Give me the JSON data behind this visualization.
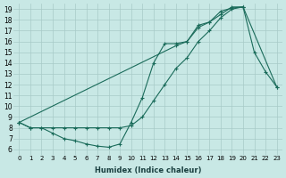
{
  "bg_color": "#c8e8e5",
  "grid_color": "#a8cac8",
  "line_color": "#1a6b5a",
  "xlim": [
    -0.5,
    23.5
  ],
  "ylim": [
    5.5,
    19.5
  ],
  "xticks": [
    0,
    1,
    2,
    3,
    4,
    5,
    6,
    7,
    8,
    9,
    10,
    11,
    12,
    13,
    14,
    15,
    16,
    17,
    18,
    19,
    20,
    21,
    22,
    23
  ],
  "yticks": [
    6,
    7,
    8,
    9,
    10,
    11,
    12,
    13,
    14,
    15,
    16,
    17,
    18,
    19
  ],
  "xlabel": "Humidex (Indice chaleur)",
  "line1_x": [
    0,
    1,
    2,
    3,
    4,
    5,
    6,
    7,
    8,
    9,
    10,
    11,
    12,
    13,
    14,
    15,
    16,
    17,
    18,
    19,
    20,
    21,
    22,
    23
  ],
  "line1_y": [
    8.5,
    8.0,
    8.0,
    7.5,
    7.0,
    6.8,
    6.5,
    6.3,
    6.2,
    6.5,
    8.5,
    10.8,
    14.0,
    15.8,
    15.8,
    16.0,
    17.5,
    17.8,
    18.5,
    19.2,
    19.2,
    15.0,
    13.2,
    11.8
  ],
  "line2_x": [
    0,
    1,
    2,
    3,
    4,
    5,
    6,
    7,
    8,
    9,
    10,
    11,
    12,
    13,
    14,
    15,
    16,
    17,
    18,
    19,
    20,
    23
  ],
  "line2_y": [
    8.5,
    8.0,
    8.0,
    8.0,
    8.0,
    8.0,
    8.0,
    8.0,
    8.0,
    8.0,
    8.2,
    9.0,
    10.5,
    12.0,
    13.5,
    14.5,
    16.0,
    17.0,
    18.2,
    19.0,
    19.2,
    11.8
  ],
  "line3_x": [
    0,
    14,
    15,
    16,
    17,
    18,
    19,
    20
  ],
  "line3_y": [
    8.5,
    15.6,
    16.0,
    17.3,
    17.8,
    18.8,
    19.1,
    19.2
  ]
}
